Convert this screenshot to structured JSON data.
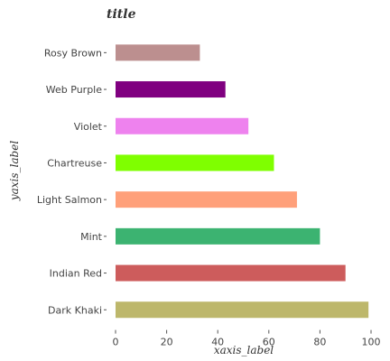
{
  "chart_data": {
    "type": "bar",
    "orientation": "horizontal",
    "title": "title",
    "xlabel": "xaxis_label",
    "ylabel": "yaxis_label",
    "xlim": [
      0,
      100
    ],
    "xticks": [
      0,
      20,
      40,
      60,
      80,
      100
    ],
    "grid": false,
    "categories": [
      "Dark Khaki",
      "Indian Red",
      "Mint",
      "Light Salmon",
      "Chartreuse",
      "Violet",
      "Web Purple",
      "Rosy Brown"
    ],
    "values": [
      99,
      90,
      80,
      71,
      62,
      52,
      43,
      33
    ],
    "colors": [
      "#bdb76b",
      "#cd5c5c",
      "#3cb371",
      "#ffa07a",
      "#7fff00",
      "#ee82ee",
      "#800080",
      "#bc8f8f"
    ]
  }
}
